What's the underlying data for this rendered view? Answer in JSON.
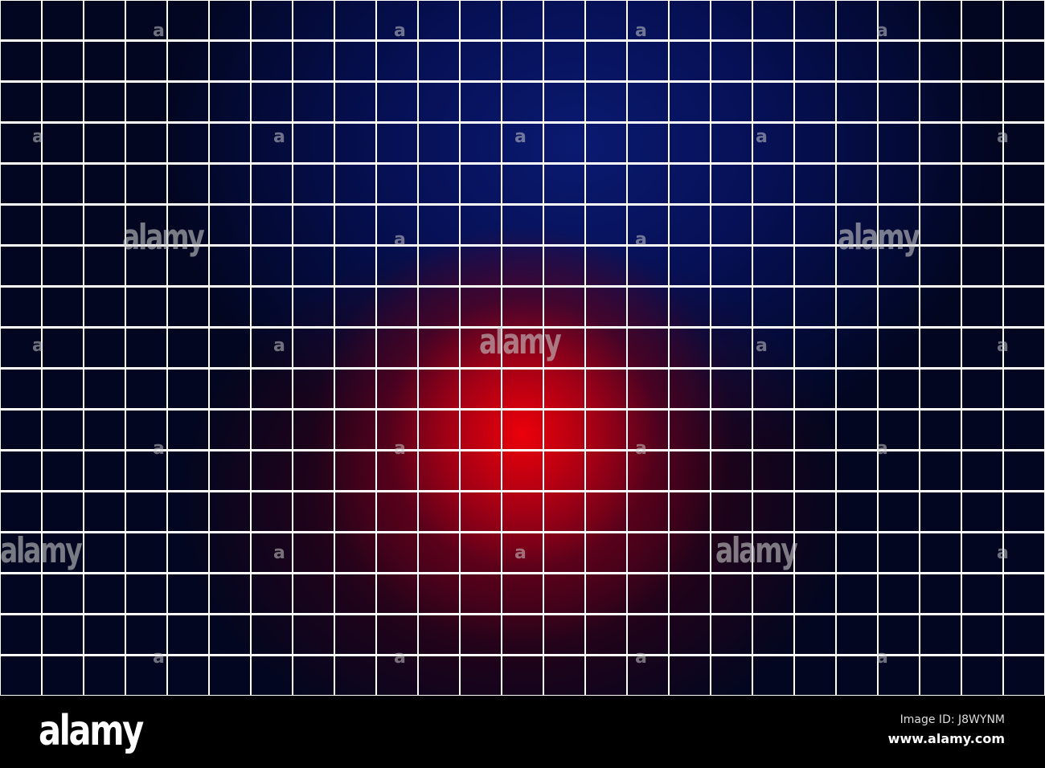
{
  "watermark": {
    "word": "alamy",
    "glyph": "a"
  },
  "footer": {
    "logo": "alamy",
    "image_id": "Image ID: J8WYNM",
    "site": "www.alamy.com"
  },
  "colors": {
    "center": "#e8000a",
    "top": "#0a1a70",
    "corners": "#000000",
    "grid_lines": "#ffffff"
  }
}
